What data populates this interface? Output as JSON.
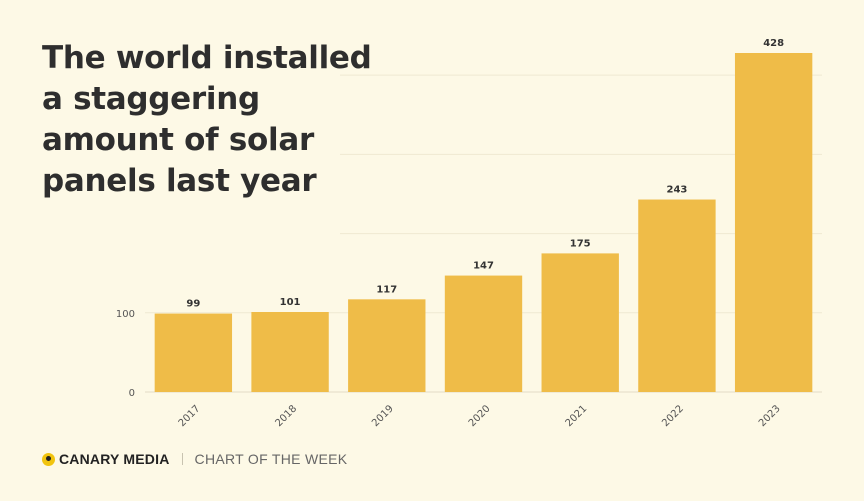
{
  "title": "The world installed a staggering amount of solar panels last year",
  "footer": {
    "brand": "CANARY MEDIA",
    "tagline": "CHART OF THE WEEK"
  },
  "colors": {
    "background": "#fdf9e6",
    "bar": "#efbc48",
    "logo_accent": "#f1c40f"
  },
  "chart_data": {
    "type": "bar",
    "categories": [
      "2017",
      "2018",
      "2019",
      "2020",
      "2021",
      "2022",
      "2023"
    ],
    "values": [
      99,
      101,
      117,
      147,
      175,
      243,
      428
    ],
    "ylim": [
      0,
      428
    ],
    "yticks": [
      0,
      100
    ],
    "xlabel": "",
    "ylabel": "",
    "grid": true,
    "data_labels": true
  }
}
